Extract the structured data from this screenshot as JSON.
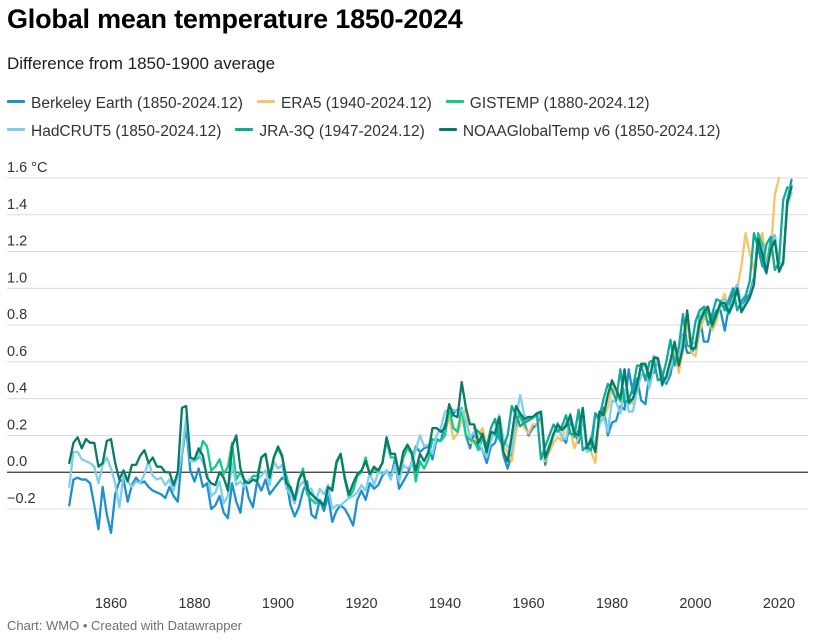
{
  "title": "Global mean temperature 1850-2024",
  "subtitle": "Difference from 1850-1900 average",
  "footer": "Chart: WMO • Created with Datawrapper",
  "chart_data": {
    "type": "line",
    "title": "Global mean temperature 1850-2024",
    "subtitle": "Difference from 1850-1900 average",
    "xlabel": "",
    "ylabel": "°C",
    "xlim": [
      1848,
      2025
    ],
    "ylim": [
      -0.3,
      1.6
    ],
    "x_ticks": [
      1860,
      1880,
      1900,
      1920,
      1940,
      1960,
      1980,
      2000,
      2020
    ],
    "y_ticks": [
      -0.2,
      0.0,
      0.2,
      0.4,
      0.6,
      0.8,
      1.0,
      1.2,
      1.4,
      1.6
    ],
    "y_tick_labels": [
      "−0.2",
      "0.0",
      "0.2",
      "0.4",
      "0.6",
      "0.8",
      "1.0",
      "1.2",
      "1.4",
      "1.6 °C"
    ],
    "grid": true,
    "legend_position": "top",
    "series": [
      {
        "name": "Berkeley Earth (1850-2024.12)",
        "color": "#1f8fcd",
        "start": 1850,
        "values": [
          -0.18,
          -0.04,
          -0.03,
          -0.04,
          -0.04,
          -0.06,
          -0.18,
          -0.31,
          -0.08,
          -0.23,
          -0.33,
          -0.12,
          -0.05,
          -0.04,
          -0.16,
          -0.07,
          -0.03,
          -0.06,
          -0.05,
          -0.08,
          -0.1,
          -0.11,
          -0.12,
          -0.14,
          -0.08,
          -0.13,
          -0.16,
          0.09,
          0.25,
          0.01,
          -0.05,
          0.02,
          -0.08,
          -0.06,
          -0.2,
          -0.18,
          -0.13,
          -0.22,
          -0.25,
          -0.06,
          -0.16,
          -0.22,
          -0.04,
          -0.14,
          -0.19,
          -0.05,
          -0.1,
          -0.04,
          -0.12,
          -0.09,
          -0.06,
          -0.03,
          -0.05,
          -0.18,
          -0.24,
          -0.19,
          -0.1,
          -0.05,
          -0.23,
          -0.25,
          -0.15,
          -0.21,
          -0.13,
          -0.27,
          -0.21,
          -0.18,
          -0.2,
          -0.24,
          -0.29,
          -0.15,
          -0.1,
          -0.15,
          -0.06,
          -0.09,
          -0.07,
          -0.02,
          0.01,
          -0.03,
          0.07,
          -0.09,
          -0.05,
          -0.01,
          0.05,
          0.14,
          0.11,
          0.13,
          0.14,
          0.07,
          0.18,
          0.17,
          0.26,
          0.28,
          0.32,
          0.34,
          0.34,
          0.2,
          0.13,
          0.22,
          0.14,
          0.12,
          0.05,
          0.14,
          0.16,
          0.24,
          0.09,
          0.02,
          0.1,
          0.26,
          0.32,
          0.27,
          0.2,
          0.24,
          0.26,
          0.3,
          0.04,
          0.14,
          0.2,
          0.26,
          0.19,
          0.16,
          0.28,
          0.22,
          0.16,
          0.3,
          0.14,
          0.16,
          0.32,
          0.28,
          0.35,
          0.2,
          0.27,
          0.28,
          0.36,
          0.34,
          0.56,
          0.43,
          0.51,
          0.39,
          0.37,
          0.54,
          0.54,
          0.62,
          0.53,
          0.48,
          0.53,
          0.66,
          0.55,
          0.75,
          0.65,
          0.65,
          0.68,
          0.85,
          0.71,
          0.71,
          0.83,
          0.88,
          0.88,
          0.77,
          0.9,
          0.97,
          1.02,
          0.9,
          0.94,
          0.97,
          1.06,
          1.25,
          1.14,
          1.08,
          1.22,
          1.28,
          1.1,
          1.14,
          1.48,
          1.59
        ]
      },
      {
        "name": "ERA5 (1940-2024.12)",
        "color": "#f5c36b",
        "start": 1940,
        "values": [
          0.22,
          0.3,
          0.18,
          0.21,
          0.28,
          0.35,
          0.16,
          0.16,
          0.2,
          0.24,
          0.14,
          0.21,
          0.22,
          0.28,
          0.14,
          0.11,
          0.06,
          0.22,
          0.3,
          0.24,
          0.21,
          0.26,
          0.26,
          0.28,
          0.06,
          0.11,
          0.16,
          0.19,
          0.17,
          0.27,
          0.23,
          0.13,
          0.19,
          0.31,
          0.12,
          0.11,
          0.05,
          0.3,
          0.29,
          0.35,
          0.46,
          0.43,
          0.38,
          0.55,
          0.39,
          0.37,
          0.46,
          0.59,
          0.58,
          0.51,
          0.59,
          0.62,
          0.49,
          0.5,
          0.57,
          0.67,
          0.54,
          0.66,
          0.82,
          0.65,
          0.63,
          0.77,
          0.83,
          0.87,
          0.77,
          0.82,
          0.92,
          0.97,
          0.87,
          0.94,
          1.0,
          1.12,
          1.3,
          1.19,
          1.1,
          1.24,
          1.3,
          1.14,
          1.18,
          1.51,
          1.6
        ]
      },
      {
        "name": "GISTEMP (1880-2024.12)",
        "color": "#14c98c",
        "start": 1880,
        "values": [
          0.06,
          0.08,
          0.17,
          0.14,
          0.01,
          0.03,
          0.07,
          -0.01,
          0.03,
          0.16,
          -0.04,
          0.0,
          -0.05,
          -0.05,
          -0.02,
          -0.02,
          0.08,
          0.1,
          -0.02,
          0.08,
          0.13,
          0.08,
          -0.02,
          -0.1,
          -0.15,
          -0.04,
          0.02,
          -0.12,
          -0.15,
          -0.17,
          -0.15,
          -0.18,
          -0.1,
          -0.08,
          0.06,
          0.1,
          -0.04,
          -0.14,
          -0.1,
          -0.02,
          0.0,
          0.08,
          -0.02,
          0.02,
          0.0,
          0.05,
          0.17,
          0.08,
          0.08,
          -0.04,
          0.08,
          0.13,
          0.1,
          -0.05,
          0.06,
          0.02,
          0.07,
          0.18,
          0.17,
          0.17,
          0.2,
          0.35,
          0.24,
          0.22,
          0.35,
          0.2,
          0.18,
          0.17,
          0.12,
          0.19,
          0.1,
          0.22,
          0.2,
          0.25,
          0.1,
          0.06,
          0.19,
          0.35,
          0.3,
          0.26,
          0.3,
          0.3,
          0.3,
          0.32,
          0.07,
          0.13,
          0.2,
          0.26,
          0.23,
          0.26,
          0.31,
          0.19,
          0.23,
          0.35,
          0.13,
          0.19,
          0.11,
          0.32,
          0.31,
          0.42,
          0.49,
          0.45,
          0.39,
          0.55,
          0.37,
          0.4,
          0.47,
          0.58,
          0.58,
          0.5,
          0.63,
          0.62,
          0.47,
          0.52,
          0.6,
          0.7,
          0.59,
          0.68,
          0.87,
          0.67,
          0.67,
          0.81,
          0.86,
          0.88,
          0.79,
          0.85,
          0.91,
          0.9,
          0.86,
          0.91,
          0.99,
          0.89,
          0.92,
          0.95,
          1.04,
          1.3,
          1.24,
          1.12,
          1.26,
          1.29,
          1.12,
          1.13,
          1.48,
          1.56
        ]
      },
      {
        "name": "HadCRUT5 (1850-2024.12)",
        "color": "#7dcfec",
        "start": 1850,
        "values": [
          -0.08,
          0.11,
          0.11,
          0.07,
          0.06,
          0.05,
          0.03,
          -0.06,
          0.04,
          0.08,
          0.02,
          -0.06,
          -0.19,
          -0.02,
          -0.05,
          -0.08,
          -0.05,
          -0.06,
          -0.01,
          0.06,
          -0.02,
          -0.04,
          -0.03,
          -0.07,
          -0.04,
          -0.1,
          -0.02,
          0.1,
          0.3,
          0.06,
          0.06,
          0.1,
          0.05,
          0.0,
          -0.13,
          -0.11,
          -0.05,
          -0.17,
          -0.13,
          0.05,
          -0.07,
          -0.05,
          -0.08,
          -0.04,
          -0.04,
          -0.04,
          -0.02,
          0.01,
          -0.07,
          0.06,
          0.02,
          0.04,
          -0.09,
          -0.12,
          -0.17,
          -0.08,
          -0.05,
          -0.09,
          -0.09,
          -0.16,
          -0.09,
          -0.12,
          -0.07,
          -0.2,
          -0.18,
          -0.18,
          -0.16,
          -0.14,
          -0.13,
          -0.11,
          -0.07,
          -0.1,
          0.0,
          -0.07,
          0.0,
          -0.01,
          0.01,
          -0.04,
          0.04,
          -0.05,
          0.04,
          0.02,
          0.04,
          0.12,
          0.2,
          0.14,
          0.15,
          0.1,
          0.2,
          0.24,
          0.33,
          0.34,
          0.34,
          0.33,
          0.34,
          0.28,
          0.19,
          0.22,
          0.17,
          0.12,
          0.08,
          0.17,
          0.23,
          0.31,
          0.18,
          0.14,
          0.11,
          0.3,
          0.42,
          0.31,
          0.29,
          0.29,
          0.32,
          0.3,
          0.08,
          0.15,
          0.2,
          0.27,
          0.19,
          0.18,
          0.32,
          0.22,
          0.19,
          0.31,
          0.11,
          0.13,
          0.17,
          0.26,
          0.3,
          0.22,
          0.39,
          0.38,
          0.32,
          0.45,
          0.33,
          0.33,
          0.44,
          0.53,
          0.53,
          0.46,
          0.57,
          0.61,
          0.48,
          0.5,
          0.57,
          0.62,
          0.62,
          0.73,
          0.86,
          0.69,
          0.71,
          0.83,
          0.9,
          0.9,
          0.8,
          0.86,
          0.93,
          0.94,
          0.89,
          0.93,
          1.02,
          0.9,
          0.92,
          0.95,
          1.04,
          1.24,
          1.22,
          1.12,
          1.21,
          1.29,
          1.12,
          1.15,
          1.45,
          1.52
        ]
      },
      {
        "name": "JRA-3Q (1947-2024.12)",
        "color": "#12a999",
        "start": 1947,
        "values": [
          0.24,
          0.22,
          0.2,
          0.14,
          0.24,
          0.29,
          0.18,
          0.14,
          0.2,
          0.36,
          0.31,
          0.25,
          0.27,
          0.28,
          0.3,
          0.32,
          0.07,
          0.14,
          0.2,
          0.26,
          0.22,
          0.25,
          0.31,
          0.21,
          0.2,
          0.34,
          0.12,
          0.14,
          0.12,
          0.32,
          0.3,
          0.4,
          0.48,
          0.45,
          0.39,
          0.56,
          0.38,
          0.39,
          0.46,
          0.58,
          0.58,
          0.5,
          0.6,
          0.61,
          0.5,
          0.51,
          0.6,
          0.72,
          0.58,
          0.68,
          0.86,
          0.69,
          0.68,
          0.82,
          0.88,
          0.9,
          0.8,
          0.86,
          0.94,
          0.93,
          0.88,
          0.94,
          1.0,
          0.88,
          0.93,
          0.96,
          1.04,
          1.3,
          1.22,
          1.12,
          1.24,
          1.28,
          1.1,
          1.14,
          1.48,
          1.55
        ]
      },
      {
        "name": "NOAAGlobalTemp v6 (1850-2024.12)",
        "color": "#0a7c66",
        "start": 1850,
        "values": [
          0.05,
          0.16,
          0.19,
          0.13,
          0.18,
          0.16,
          0.16,
          0.03,
          0.05,
          0.17,
          0.18,
          0.05,
          -0.04,
          0.01,
          -0.05,
          0.04,
          0.04,
          0.09,
          0.12,
          0.05,
          0.08,
          0.03,
          0.03,
          0.0,
          0.0,
          -0.07,
          0.0,
          0.35,
          0.36,
          0.08,
          0.07,
          0.13,
          0.09,
          -0.03,
          -0.06,
          -0.07,
          0.0,
          -0.03,
          -0.1,
          0.14,
          0.2,
          0.02,
          -0.05,
          -0.06,
          -0.04,
          -0.05,
          0.08,
          0.1,
          -0.03,
          0.08,
          0.14,
          0.09,
          -0.06,
          -0.08,
          -0.15,
          -0.04,
          0.0,
          -0.09,
          -0.12,
          -0.14,
          -0.16,
          -0.18,
          -0.08,
          -0.1,
          0.05,
          0.1,
          -0.03,
          -0.12,
          -0.06,
          -0.01,
          0.01,
          0.06,
          -0.01,
          0.03,
          0.01,
          0.05,
          0.19,
          0.1,
          0.1,
          -0.01,
          0.11,
          0.15,
          0.11,
          0.01,
          0.1,
          0.06,
          0.11,
          0.24,
          0.24,
          0.22,
          0.24,
          0.37,
          0.31,
          0.3,
          0.49,
          0.35,
          0.26,
          0.26,
          0.16,
          0.21,
          0.11,
          0.22,
          0.21,
          0.3,
          0.11,
          0.06,
          0.2,
          0.36,
          0.32,
          0.29,
          0.3,
          0.3,
          0.32,
          0.33,
          0.08,
          0.14,
          0.21,
          0.26,
          0.23,
          0.25,
          0.31,
          0.21,
          0.2,
          0.35,
          0.13,
          0.18,
          0.11,
          0.33,
          0.31,
          0.42,
          0.5,
          0.45,
          0.4,
          0.56,
          0.38,
          0.4,
          0.47,
          0.59,
          0.59,
          0.51,
          0.62,
          0.62,
          0.48,
          0.52,
          0.61,
          0.71,
          0.58,
          0.68,
          0.88,
          0.67,
          0.68,
          0.82,
          0.87,
          0.9,
          0.8,
          0.86,
          0.92,
          0.92,
          0.87,
          0.92,
          1.0,
          0.87,
          0.91,
          0.95,
          1.02,
          1.27,
          1.19,
          1.09,
          1.21,
          1.26,
          1.09,
          1.14,
          1.47,
          1.55
        ]
      }
    ]
  }
}
